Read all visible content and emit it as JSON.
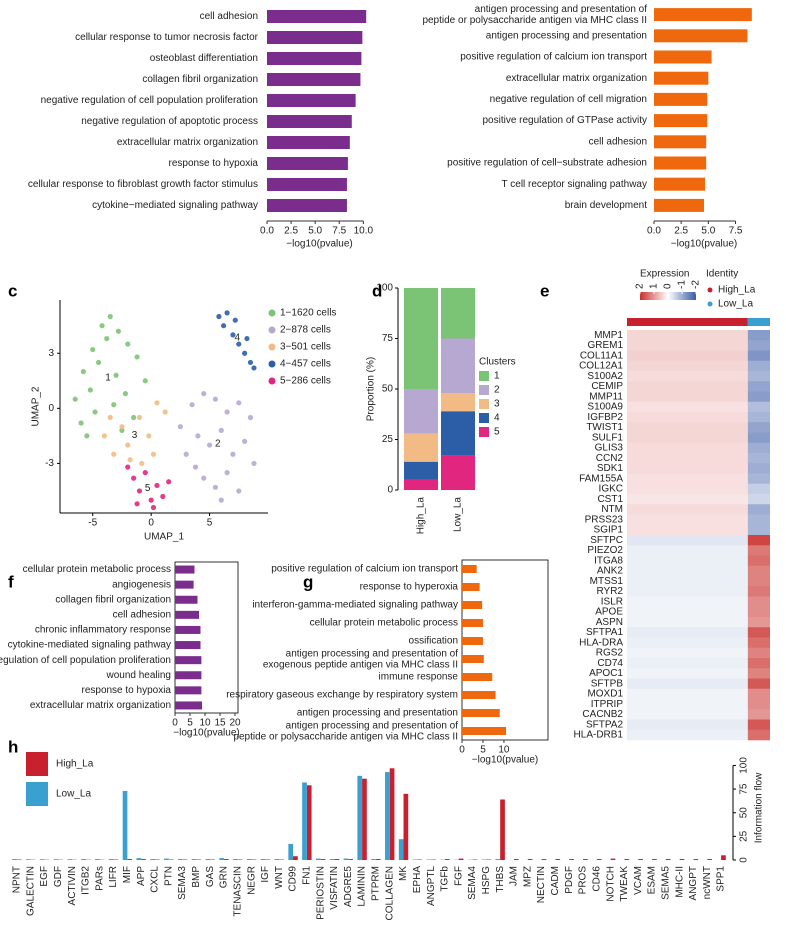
{
  "chart_data": [
    {
      "type": "bar",
      "orientation": "horizontal",
      "color": "#7b2d8e",
      "categories": [
        "cell adhesion",
        "cellular response to tumor necrosis factor",
        "osteoblast differentiation",
        "collagen fibril organization",
        "negative regulation of cell population proliferation",
        "negative regulation of apoptotic process",
        "extracellular matrix organization",
        "response to hypoxia",
        "cellular response to fibroblast growth factor stimulus",
        "cytokine−mediated signaling pathway"
      ],
      "values": [
        10.3,
        9.9,
        9.8,
        9.7,
        9.2,
        8.8,
        8.6,
        8.4,
        8.3,
        8.3
      ],
      "xlim": [
        0,
        10.9
      ],
      "xticks": [
        {
          "value": 0,
          "label": "0.0"
        },
        2.5,
        {
          "value": 5,
          "label": "5.0"
        },
        7.5,
        {
          "value": 10,
          "label": "10.0"
        }
      ],
      "xlabel": "−log10(pvalue)"
    },
    {
      "type": "bar",
      "orientation": "horizontal",
      "color": "#f0680e",
      "categories": [
        "antigen processing and presentation of\npeptide or polysaccharide antigen via MHC class II",
        "antigen processing and presentation",
        "positive regulation of calcium ion transport",
        "extracellular matrix organization",
        "negative regulation of cell migration",
        "positive regulation of GTPase activity",
        "cell adhesion",
        "positive regulation of cell−substrate adhesion",
        "T cell receptor signaling pathway",
        "brain development"
      ],
      "values": [
        9.0,
        8.6,
        5.3,
        5.0,
        4.9,
        4.9,
        4.8,
        4.8,
        4.7,
        4.6
      ],
      "xlim": [
        0,
        9.2
      ],
      "xticks": [
        {
          "value": 0,
          "label": "0.0"
        },
        2.5,
        {
          "value": 5,
          "label": "5.0"
        },
        7.5
      ],
      "xlabel": "−log10(pvalue)"
    },
    {
      "type": "scatter",
      "panel_label": "c",
      "xlabel": "UMAP_1",
      "ylabel": "UMAP_2",
      "xlim": [
        -7.8,
        10
      ],
      "ylim": [
        -5.7,
        5.9
      ],
      "xticks": [
        -5,
        0,
        5
      ],
      "yticks": [
        -3,
        0,
        3
      ],
      "cluster_labels": [
        "1",
        "2",
        "3",
        "4",
        "5"
      ],
      "series": [
        {
          "name": "1−1620 cells",
          "color": "#7cc475",
          "x": [
            -6.5,
            -5.8,
            -5.0,
            -4.2,
            -3.5,
            -2.8,
            -2.0,
            -1.2,
            -0.5,
            -6.0,
            -5.2,
            -4.5,
            -3.8,
            -3.0,
            -2.2,
            -1.5,
            -5.5,
            -4.8,
            -3.2,
            -2.5
          ],
          "y": [
            0.5,
            2.0,
            3.2,
            4.5,
            5.0,
            4.2,
            3.5,
            2.8,
            1.5,
            -0.8,
            1.0,
            2.5,
            3.8,
            1.8,
            0.8,
            -0.5,
            -1.5,
            -0.2,
            0.2,
            -1.2
          ]
        },
        {
          "name": "2−878 cells",
          "color": "#b7a8d1",
          "x": [
            2.5,
            3.5,
            4.5,
            5.5,
            6.5,
            7.5,
            8.5,
            3.0,
            4.0,
            5.0,
            6.0,
            7.0,
            8.0,
            8.8,
            4.5,
            5.5,
            6.5,
            7.5,
            3.8,
            6.0
          ],
          "y": [
            -1.0,
            0.2,
            0.8,
            0.5,
            -0.2,
            0.3,
            -0.5,
            -2.5,
            -1.5,
            -2.0,
            -1.2,
            -2.5,
            -1.8,
            -3.0,
            -3.8,
            -4.3,
            -3.5,
            -4.5,
            -3.2,
            -5.0
          ]
        },
        {
          "name": "3−501 cells",
          "color": "#f2bb85",
          "x": [
            -4.0,
            -3.2,
            -2.5,
            -1.8,
            -1.0,
            -0.2,
            0.5,
            1.2,
            -3.5,
            -2.0,
            -0.8,
            0.2
          ],
          "y": [
            -1.5,
            -2.5,
            -1.0,
            -2.8,
            -0.5,
            -1.5,
            0.3,
            -0.2,
            -0.5,
            -2.0,
            -3.0,
            -2.5
          ]
        },
        {
          "name": "4−457 cells",
          "color": "#2b5ea7",
          "x": [
            5.8,
            6.5,
            7.0,
            7.5,
            8.0,
            8.5,
            8.8,
            6.2,
            7.2,
            8.2
          ],
          "y": [
            5.0,
            5.2,
            4.0,
            3.5,
            3.0,
            2.5,
            2.2,
            4.5,
            4.8,
            3.8
          ]
        },
        {
          "name": "5−286 cells",
          "color": "#e1267f",
          "x": [
            -2.0,
            -1.5,
            -1.0,
            -0.5,
            0.0,
            0.5,
            1.0,
            1.5,
            -1.2,
            0.2
          ],
          "y": [
            -3.2,
            -3.8,
            -4.5,
            -3.5,
            -5.0,
            -4.2,
            -4.8,
            -4.0,
            -5.2,
            -5.4
          ]
        }
      ]
    },
    {
      "type": "bar",
      "stacked": true,
      "panel_label": "d",
      "ylabel": "Proportion (%)",
      "legend_title": "Clusters",
      "categories": [
        "High_La",
        "Low_La"
      ],
      "ylim": [
        0,
        100
      ],
      "yticks": [
        0,
        25,
        50,
        75,
        100
      ],
      "series": [
        {
          "name": "1",
          "color": "#7cc475",
          "values": [
            50,
            25
          ]
        },
        {
          "name": "2",
          "color": "#b7a8d1",
          "values": [
            22,
            27
          ]
        },
        {
          "name": "3",
          "color": "#f2bb85",
          "values": [
            14,
            9
          ]
        },
        {
          "name": "4",
          "color": "#2b5ea7",
          "values": [
            9,
            22
          ]
        },
        {
          "name": "5",
          "color": "#e1267f",
          "values": [
            5,
            17
          ]
        }
      ]
    },
    {
      "type": "heatmap",
      "panel_label": "e",
      "colorbar_title": "Expression",
      "colorbar_ticks": [
        2,
        1,
        0,
        -1,
        -2
      ],
      "colormap": [
        "#c9302c",
        "#ffffff",
        "#3b5ba6"
      ],
      "identity": {
        "title": "Identity",
        "labels": [
          "High_La",
          "Low_La"
        ],
        "colors": [
          "#c8202f",
          "#3aa0d0"
        ]
      },
      "rows": [
        "MMP1",
        "GREM1",
        "COL11A1",
        "COL12A1",
        "S100A2",
        "CEMIP",
        "MMP11",
        "S100A9",
        "IGFBP2",
        "TWIST1",
        "SULF1",
        "GLIS3",
        "CCN2",
        "SDK1",
        "FAM155A",
        "IGKC",
        "CST1",
        "NTM",
        "PRSS23",
        "SGIP1",
        "SFTPC",
        "PIEZO2",
        "ITGA8",
        "ANK2",
        "MTSS1",
        "RYR2",
        "ISLR",
        "APOE",
        "ASPN",
        "SFTPA1",
        "HLA-DRA",
        "RGS2",
        "CD74",
        "APOC1",
        "SFTPB",
        "MOXD1",
        "ITPRIP",
        "CACNB2",
        "SFTPA2",
        "HLA-DRB1"
      ],
      "values": [
        [
          0.4,
          -1.2
        ],
        [
          0.4,
          -1.1
        ],
        [
          0.45,
          -1.3
        ],
        [
          0.4,
          -1.0
        ],
        [
          0.35,
          -0.9
        ],
        [
          0.4,
          -1.1
        ],
        [
          0.4,
          -1.2
        ],
        [
          0.3,
          -0.8
        ],
        [
          0.35,
          -0.9
        ],
        [
          0.4,
          -1.1
        ],
        [
          0.4,
          -1.2
        ],
        [
          0.35,
          -1.0
        ],
        [
          0.35,
          -0.9
        ],
        [
          0.35,
          -1.0
        ],
        [
          0.3,
          -0.9
        ],
        [
          0.3,
          -0.6
        ],
        [
          0.25,
          -0.5
        ],
        [
          0.35,
          -1.0
        ],
        [
          0.3,
          -0.9
        ],
        [
          0.3,
          -0.9
        ],
        [
          -0.3,
          1.8
        ],
        [
          -0.2,
          1.3
        ],
        [
          -0.2,
          1.4
        ],
        [
          -0.2,
          1.2
        ],
        [
          -0.2,
          1.2
        ],
        [
          -0.2,
          1.3
        ],
        [
          -0.15,
          1.1
        ],
        [
          -0.15,
          1.1
        ],
        [
          -0.15,
          1.0
        ],
        [
          -0.25,
          1.6
        ],
        [
          -0.2,
          1.4
        ],
        [
          -0.15,
          1.2
        ],
        [
          -0.2,
          1.4
        ],
        [
          -0.15,
          1.2
        ],
        [
          -0.25,
          1.6
        ],
        [
          -0.15,
          1.1
        ],
        [
          -0.15,
          1.1
        ],
        [
          -0.15,
          1.0
        ],
        [
          -0.25,
          1.6
        ],
        [
          -0.2,
          1.4
        ]
      ]
    },
    {
      "type": "bar",
      "orientation": "horizontal",
      "panel_label": "f",
      "color": "#7b2d8e",
      "categories": [
        "cellular protein metabolic process",
        "angiogenesis",
        "collagen fibril organization",
        "cell adhesion",
        "chronic inflammatory response",
        "cytokine-mediated signaling pathway",
        "positive regulation of cell population proliferation",
        "wound healing",
        "response to hypoxia",
        "extracellular matrix organization"
      ],
      "values": [
        6.5,
        6.2,
        7.5,
        8.0,
        8.5,
        8.5,
        8.8,
        8.8,
        8.8,
        9.0
      ],
      "xlim": [
        0,
        21
      ],
      "xticks": [
        0,
        5,
        10,
        15,
        20
      ],
      "xlabel": "−log10(pvalue)"
    },
    {
      "type": "bar",
      "orientation": "horizontal",
      "panel_label": "g",
      "color": "#f0680e",
      "categories": [
        "positive regulation of calcium ion transport",
        "response to hyperoxia",
        "interferon-gamma-mediated signaling pathway",
        "cellular protein metabolic process",
        "ossification",
        "antigen processing and presentation of\nexogenous peptide antigen via MHC class II",
        "immune response",
        "respiratory gaseous exchange by respiratory system",
        "antigen processing and presentation",
        "antigen processing and presentation of\npeptide or polysaccharide antigen via MHC class II"
      ],
      "values": [
        3.5,
        4.2,
        4.8,
        5.0,
        5.0,
        5.2,
        7.2,
        8.0,
        9.0,
        10.5
      ],
      "xlim": [
        0,
        20.5
      ],
      "xticks": [
        0,
        5,
        10
      ],
      "xlabel": "−log10(pvalue)"
    },
    {
      "type": "bar",
      "panel_label": "h",
      "ylabel": "Information flow",
      "y_axis_side": "right",
      "ylim": [
        0,
        110
      ],
      "yticks": [
        0,
        25,
        50,
        75,
        100
      ],
      "categories": [
        "NPNT",
        "GALECTIN",
        "EGF",
        "GDF",
        "ACTIVIN",
        "ITGB2",
        "PARs",
        "LIFR",
        "MIF",
        "APP",
        "CXCL",
        "PTN",
        "SEMA3",
        "BMP",
        "GAS",
        "GRN",
        "TENASCIN",
        "NEGR",
        "IGF",
        "WNT",
        "CD99",
        "FN1",
        "PERIOSTIN",
        "VISFATIN",
        "ADGRE5",
        "LAMININ",
        "PTPRM",
        "COLLAGEN",
        "MK",
        "EPHA",
        "ANGPTL",
        "TGFb",
        "FGF",
        "SEMA4",
        "HSPG",
        "THBS",
        "JAM",
        "MPZ",
        "NECTIN",
        "CADM",
        "PDGF",
        "PROS",
        "CD46",
        "NOTCH",
        "TWEAK",
        "VCAM",
        "ESAM",
        "SEMA5",
        "MHC-II",
        "ANGPT",
        "ncWNT",
        "SPP1"
      ],
      "category_colors": [
        "#3a9ad0",
        "#3a9ad0",
        "#3a9ad0",
        "#3a9ad0",
        "#3a9ad0",
        "#3a9ad0",
        "#3a9ad0",
        "#3a9ad0",
        "#3a9ad0",
        "#3a9ad0",
        "#3a9ad0",
        "#222222",
        "#3a9ad0",
        "#222222",
        "#222222",
        "#3a9ad0",
        "#222222",
        "#222222",
        "#222222",
        "#222222",
        "#222222",
        "#222222",
        "#222222",
        "#222222",
        "#222222",
        "#222222",
        "#222222",
        "#222222",
        "#222222",
        "#222222",
        "#222222",
        "#c8202f",
        "#c8202f",
        "#c8202f",
        "#222222",
        "#c8202f",
        "#c8202f",
        "#c8202f",
        "#c8202f",
        "#c8202f",
        "#c8202f",
        "#c8202f",
        "#c8202f",
        "#c8202f",
        "#c8202f",
        "#c8202f",
        "#c8202f",
        "#c8202f",
        "#c8202f",
        "#c8202f",
        "#c8202f",
        "#c8202f"
      ],
      "series": [
        {
          "name": "High_La",
          "color": "#c8202f",
          "values": [
            0.5,
            0.3,
            0.3,
            0.3,
            0.3,
            0.3,
            0.3,
            0.5,
            1,
            1,
            0.5,
            0.5,
            0.5,
            0.5,
            0.5,
            1,
            0.5,
            0.5,
            0.5,
            0.5,
            4,
            79,
            1,
            1,
            1,
            86,
            1,
            97,
            70,
            0.5,
            0.5,
            1,
            1.5,
            0.5,
            0.5,
            64,
            1,
            1,
            1,
            1,
            1,
            1,
            1,
            1.5,
            1,
            1,
            1,
            1,
            1,
            1,
            1,
            5
          ]
        },
        {
          "name": "Low_La",
          "color": "#3aa0d0",
          "values": [
            1,
            0.8,
            0.8,
            0.8,
            0.8,
            1,
            1,
            1,
            73,
            2,
            1,
            1.5,
            1,
            1,
            1,
            2,
            1,
            1,
            1,
            1,
            17,
            82,
            1.5,
            1,
            1.5,
            89,
            1,
            93,
            22,
            0.5,
            0.5,
            0.3,
            0.3,
            0.3,
            0.5,
            1,
            0,
            0,
            0,
            0,
            0,
            0,
            0,
            0,
            0,
            0,
            0,
            0,
            0,
            0,
            0,
            0
          ]
        }
      ]
    }
  ]
}
